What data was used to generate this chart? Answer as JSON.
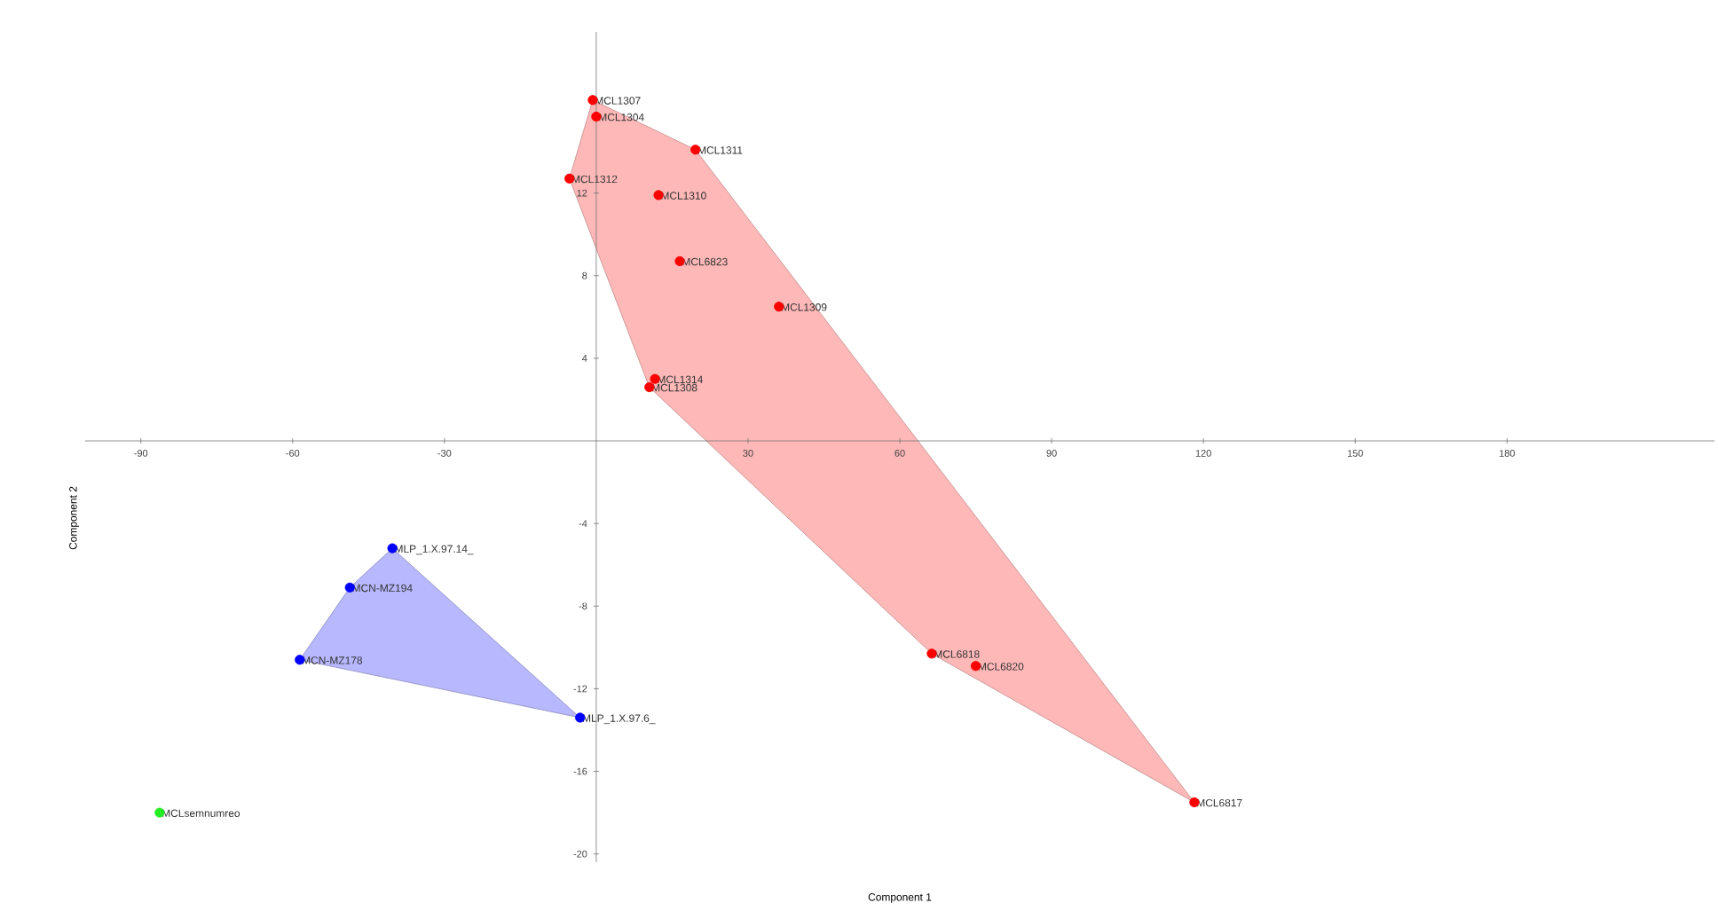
{
  "chart_data": {
    "type": "scatter",
    "xlabel": "Component 1",
    "ylabel": "Component 2",
    "xlim": [
      -101,
      221
    ],
    "ylim": [
      -20.4,
      19.8
    ],
    "xticks": [
      -90,
      -60,
      -30,
      30,
      60,
      90,
      120,
      150,
      180
    ],
    "yticks": [
      -20,
      -16,
      -12,
      -8,
      -4,
      4,
      8,
      12
    ],
    "grid": false,
    "series": [
      {
        "type": "area",
        "marker": "none",
        "color": "#ffb8b8",
        "x": [
          -0.7,
          -5.3,
          10.5,
          66.3,
          118.2,
          19.6
        ],
        "values": [
          16.5,
          12.7,
          2.6,
          -10.3,
          -17.5,
          14.1
        ]
      },
      {
        "type": "area",
        "marker": "none",
        "color": "#b8b8ff",
        "x": [
          -40.3,
          -48.7,
          -58.6,
          -3.2
        ],
        "values": [
          -5.2,
          -7.1,
          -10.6,
          -13.4
        ]
      },
      {
        "marker": "circle",
        "color": "#ff0000",
        "x": [
          -0.7,
          0,
          19.6,
          -5.3,
          12.3,
          16.5,
          36.1,
          11.6,
          10.5,
          66.3,
          75.0,
          118.2
        ],
        "values": [
          16.5,
          15.7,
          14.1,
          12.7,
          11.9,
          8.7,
          6.5,
          3.0,
          2.6,
          -10.3,
          -10.9,
          -17.5
        ]
      },
      {
        "marker": "circle",
        "color": "#0000ff",
        "x": [
          -40.3,
          -48.7,
          -58.6,
          -3.2
        ],
        "values": [
          -5.2,
          -7.1,
          -10.6,
          -13.4
        ]
      },
      {
        "marker": "circle",
        "color": "#22ee22",
        "x": [
          -86.3
        ],
        "values": [
          -18.0
        ]
      }
    ],
    "annotations": [
      {
        "text": "MCL1307",
        "x": -0.7,
        "y": 16.5
      },
      {
        "text": "MCL1304",
        "x": 0,
        "y": 15.7
      },
      {
        "text": "MCL1311",
        "x": 19.6,
        "y": 14.1
      },
      {
        "text": "MCL1312",
        "x": -5.3,
        "y": 12.7
      },
      {
        "text": "MCL1310",
        "x": 12.3,
        "y": 11.9
      },
      {
        "text": "MCL6823",
        "x": 16.5,
        "y": 8.7
      },
      {
        "text": "MCL1309",
        "x": 36.1,
        "y": 6.5
      },
      {
        "text": "MCL1314",
        "x": 11.6,
        "y": 3.0
      },
      {
        "text": "MCL1308",
        "x": 10.5,
        "y": 2.6
      },
      {
        "text": "MCL6818",
        "x": 66.3,
        "y": -10.3
      },
      {
        "text": "MCL6820",
        "x": 75.0,
        "y": -10.9
      },
      {
        "text": "MCL6817",
        "x": 118.2,
        "y": -17.5
      },
      {
        "text": "MLP_1.X.97.14_",
        "x": -40.3,
        "y": -5.2
      },
      {
        "text": "MCN-MZ194",
        "x": -48.7,
        "y": -7.1
      },
      {
        "text": "MCN-MZ178",
        "x": -58.6,
        "y": -10.6
      },
      {
        "text": "MLP_1.X.97.6_",
        "x": -3.2,
        "y": -13.4
      },
      {
        "text": "MCLsemnumreo",
        "x": -86.3,
        "y": -18.0
      }
    ]
  }
}
